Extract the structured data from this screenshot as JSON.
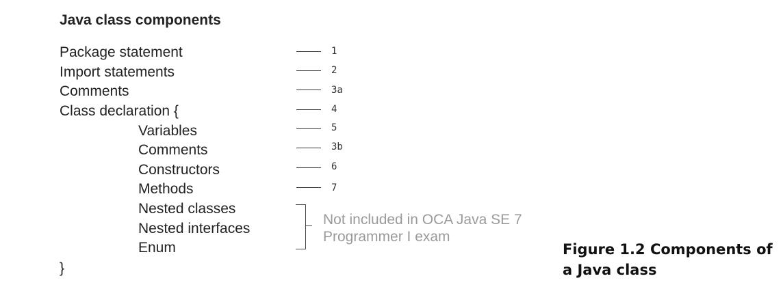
{
  "title": "Java class components",
  "components": [
    {
      "label": "Package statement",
      "number": "1"
    },
    {
      "label": "Import statements",
      "number": "2"
    },
    {
      "label": "Comments",
      "number": "3a"
    },
    {
      "label": "Class declaration {",
      "number": "4"
    },
    {
      "label": "Variables",
      "number": "5"
    },
    {
      "label": "Comments",
      "number": "3b"
    },
    {
      "label": "Constructors",
      "number": "6"
    },
    {
      "label": "Methods",
      "number": "7"
    }
  ],
  "excluded_components": [
    "Nested classes",
    "Nested interfaces",
    "Enum"
  ],
  "excluded_note": {
    "line1": "Not included in OCA Java SE 7",
    "line2": "Programmer I exam"
  },
  "closing_brace": "}",
  "figure_caption": {
    "line1": "Figure 1.2   Components of",
    "line2": "a Java class"
  }
}
